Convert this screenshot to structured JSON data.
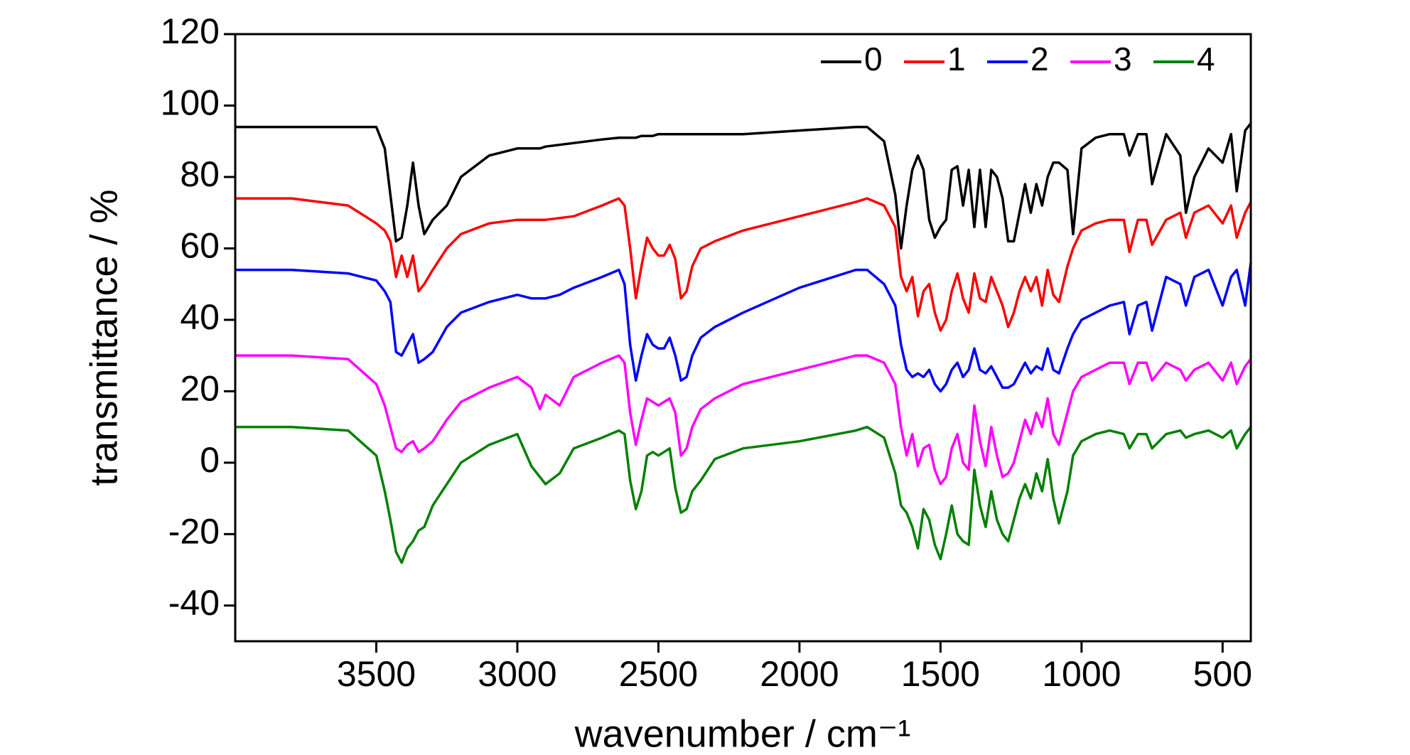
{
  "chart_data": {
    "type": "line",
    "xlabel": "wavenumber / cm⁻¹",
    "ylabel": "transmittance / %",
    "xlim": [
      4000,
      400
    ],
    "ylim": [
      -50,
      120
    ],
    "xticks": [
      3500,
      3000,
      2500,
      2000,
      1500,
      1000,
      500
    ],
    "yticks": [
      -40,
      -20,
      0,
      20,
      40,
      60,
      80,
      100,
      120
    ],
    "legend": "upper right",
    "x": [
      4000,
      3800,
      3600,
      3500,
      3470,
      3450,
      3430,
      3410,
      3390,
      3370,
      3350,
      3330,
      3300,
      3250,
      3200,
      3100,
      3000,
      2950,
      2920,
      2900,
      2850,
      2800,
      2700,
      2640,
      2620,
      2600,
      2580,
      2560,
      2540,
      2520,
      2500,
      2480,
      2460,
      2440,
      2420,
      2400,
      2380,
      2350,
      2300,
      2200,
      2000,
      1800,
      1760,
      1700,
      1660,
      1640,
      1620,
      1600,
      1580,
      1560,
      1540,
      1520,
      1500,
      1480,
      1460,
      1440,
      1420,
      1400,
      1380,
      1360,
      1340,
      1320,
      1300,
      1280,
      1260,
      1240,
      1220,
      1200,
      1180,
      1160,
      1140,
      1120,
      1100,
      1080,
      1050,
      1030,
      1000,
      950,
      900,
      850,
      830,
      800,
      770,
      750,
      700,
      650,
      630,
      600,
      550,
      500,
      470,
      450,
      420,
      400
    ],
    "series": [
      {
        "name": "0",
        "color": "#000000",
        "values": [
          94,
          94,
          94,
          94,
          88,
          75,
          62,
          63,
          72,
          84,
          72,
          64,
          68,
          72,
          80,
          86,
          88,
          88,
          88,
          88.5,
          89,
          89.5,
          90.5,
          91,
          91,
          91,
          91,
          91.5,
          91.5,
          91.5,
          92,
          92,
          92,
          92,
          92,
          92,
          92,
          92,
          92,
          92,
          93,
          94,
          94,
          90,
          75,
          60,
          72,
          82,
          86,
          82,
          68,
          63,
          66,
          68,
          82,
          83,
          72,
          82,
          66,
          82,
          66,
          82,
          80,
          74,
          62,
          62,
          70,
          78,
          70,
          78,
          72,
          80,
          84,
          84,
          82,
          64,
          88,
          91,
          92,
          92,
          86,
          92,
          92,
          78,
          92,
          86,
          70,
          80,
          88,
          84,
          92,
          76,
          93,
          95
        ]
      },
      {
        "name": "1",
        "color": "#ff0000",
        "values": [
          74,
          74,
          72,
          67,
          65,
          62,
          52,
          58,
          52,
          58,
          48,
          50,
          54,
          60,
          64,
          67,
          68,
          68,
          68,
          68,
          68.5,
          69,
          72,
          74,
          72,
          60,
          46,
          55,
          63,
          60,
          58,
          58,
          61,
          57,
          46,
          48,
          55,
          60,
          62,
          65,
          69,
          73,
          74,
          72,
          66,
          52,
          48,
          52,
          41,
          48,
          50,
          42,
          37,
          40,
          48,
          53,
          46,
          42,
          53,
          46,
          45,
          52,
          48,
          44,
          38,
          42,
          48,
          52,
          48,
          52,
          44,
          54,
          47,
          45,
          55,
          60,
          65,
          67,
          68,
          68,
          59,
          68,
          68,
          61,
          68,
          70,
          63,
          70,
          72,
          67,
          72,
          63,
          70,
          73
        ]
      },
      {
        "name": "2",
        "color": "#0000ff",
        "values": [
          54,
          54,
          53,
          51,
          48,
          45,
          31,
          30,
          33,
          36,
          28,
          29,
          31,
          38,
          42,
          45,
          47,
          46,
          46,
          46,
          47,
          49,
          52,
          54,
          50,
          33,
          23,
          30,
          36,
          33,
          32,
          32,
          35,
          30,
          23,
          24,
          30,
          35,
          38,
          42,
          49,
          54,
          54,
          50,
          44,
          33,
          26,
          24,
          25,
          24,
          26,
          22,
          20,
          22,
          26,
          28,
          24,
          26,
          32,
          26,
          25,
          27,
          24,
          21,
          21,
          22,
          25,
          28,
          25,
          27,
          26,
          32,
          26,
          25,
          32,
          36,
          40,
          42,
          44,
          45,
          36,
          44,
          45,
          37,
          52,
          50,
          44,
          52,
          54,
          44,
          52,
          54,
          44,
          56
        ]
      },
      {
        "name": "3",
        "color": "#ff00ff",
        "values": [
          30,
          30,
          29,
          22,
          16,
          10,
          4,
          3,
          5,
          6,
          3,
          4,
          6,
          12,
          17,
          21,
          24,
          21,
          15,
          19,
          16,
          24,
          28,
          30,
          28,
          14,
          5,
          12,
          18,
          17,
          16,
          17,
          18,
          14,
          2,
          4,
          10,
          15,
          18,
          22,
          26,
          30,
          30,
          28,
          22,
          10,
          2,
          8,
          -1,
          4,
          5,
          -2,
          -6,
          -4,
          4,
          8,
          0,
          -2,
          16,
          6,
          -1,
          10,
          2,
          -4,
          -3,
          0,
          6,
          12,
          8,
          14,
          10,
          18,
          8,
          5,
          14,
          20,
          24,
          26,
          28,
          28,
          22,
          28,
          28,
          23,
          28,
          26,
          23,
          26,
          28,
          23,
          28,
          22,
          27,
          29
        ]
      },
      {
        "name": "4",
        "color": "#008000",
        "values": [
          10,
          10,
          9,
          2,
          -8,
          -16,
          -25,
          -28,
          -24,
          -22,
          -19,
          -18,
          -12,
          -6,
          0,
          5,
          8,
          -1,
          -4,
          -6,
          -3,
          4,
          7,
          9,
          8,
          -5,
          -13,
          -8,
          2,
          3,
          2,
          3,
          4,
          -7,
          -14,
          -13,
          -8,
          -5,
          1,
          4,
          6,
          9,
          10,
          7,
          -3,
          -12,
          -14,
          -18,
          -24,
          -13,
          -16,
          -23,
          -27,
          -20,
          -12,
          -20,
          -22,
          -23,
          -2,
          -12,
          -18,
          -8,
          -16,
          -20,
          -22,
          -16,
          -10,
          -6,
          -10,
          -3,
          -8,
          1,
          -10,
          -17,
          -8,
          2,
          6,
          8,
          9,
          8,
          4,
          8,
          8,
          4,
          8,
          9,
          7,
          8,
          9,
          7,
          9,
          4,
          8,
          10
        ]
      }
    ]
  }
}
